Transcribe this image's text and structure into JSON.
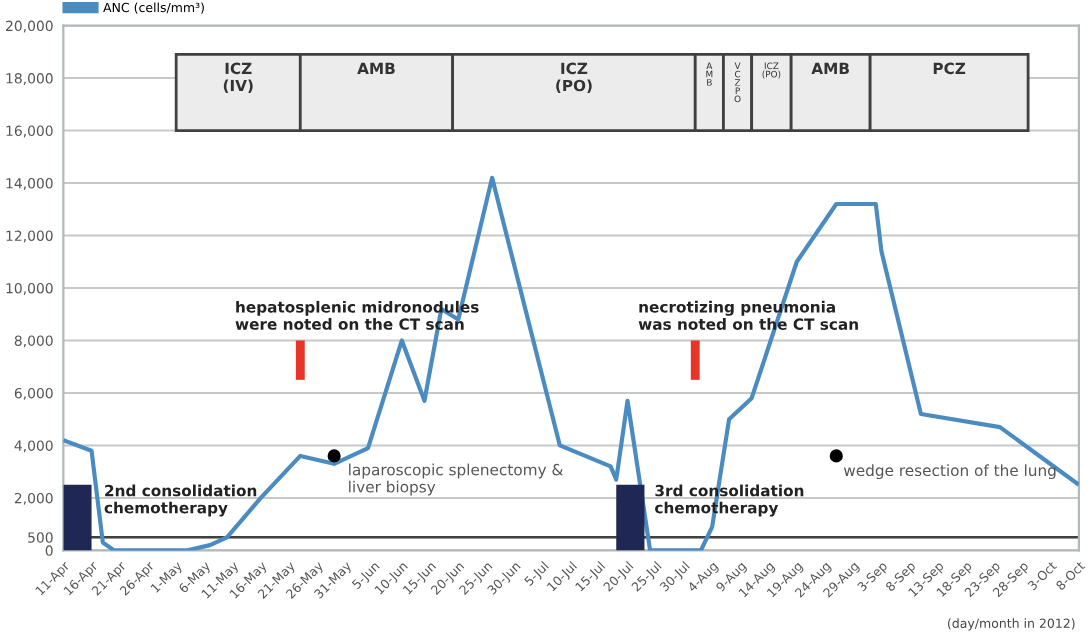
{
  "chart_data": {
    "type": "line",
    "legend": "top left",
    "grid": "y",
    "line_style": "solid",
    "xlim": [
      "2012-04-11",
      "2012-10-08"
    ],
    "xticks": [
      {
        "value": "2012-04-11",
        "label": "11-Apr"
      },
      {
        "value": "2012-04-16",
        "label": "16-Apr"
      },
      {
        "value": "2012-04-21",
        "label": "21-Apr"
      },
      {
        "value": "2012-04-26",
        "label": "26-Apr"
      },
      {
        "value": "2012-05-01",
        "label": "1-May"
      },
      {
        "value": "2012-05-06",
        "label": "6-May"
      },
      {
        "value": "2012-05-11",
        "label": "11-May"
      },
      {
        "value": "2012-05-16",
        "label": "16-May"
      },
      {
        "value": "2012-05-21",
        "label": "21-May"
      },
      {
        "value": "2012-05-26",
        "label": "26-May"
      },
      {
        "value": "2012-05-31",
        "label": "31-May"
      },
      {
        "value": "2012-06-05",
        "label": "5-Jun"
      },
      {
        "value": "2012-06-10",
        "label": "10-Jun"
      },
      {
        "value": "2012-06-15",
        "label": "15-Jun"
      },
      {
        "value": "2012-06-20",
        "label": "20-Jun"
      },
      {
        "value": "2012-06-25",
        "label": "25-Jun"
      },
      {
        "value": "2012-06-30",
        "label": "30-Jun"
      },
      {
        "value": "2012-07-05",
        "label": "5-Jul"
      },
      {
        "value": "2012-07-10",
        "label": "10-Jul"
      },
      {
        "value": "2012-07-15",
        "label": "15-Jul"
      },
      {
        "value": "2012-07-20",
        "label": "20-Jul"
      },
      {
        "value": "2012-07-25",
        "label": "25-Jul"
      },
      {
        "value": "2012-07-30",
        "label": "30-Jul"
      },
      {
        "value": "2012-08-04",
        "label": "4-Aug"
      },
      {
        "value": "2012-08-09",
        "label": "9-Aug"
      },
      {
        "value": "2012-08-14",
        "label": "14-Aug"
      },
      {
        "value": "2012-08-19",
        "label": "19-Aug"
      },
      {
        "value": "2012-08-24",
        "label": "24-Aug"
      },
      {
        "value": "2012-08-29",
        "label": "29-Aug"
      },
      {
        "value": "2012-09-03",
        "label": "3-Sep"
      },
      {
        "value": "2012-09-08",
        "label": "8-Sep"
      },
      {
        "value": "2012-09-13",
        "label": "13-Sep"
      },
      {
        "value": "2012-09-18",
        "label": "18-Sep"
      },
      {
        "value": "2012-09-23",
        "label": "23-Sep"
      },
      {
        "value": "2012-09-28",
        "label": "28-Sep"
      },
      {
        "value": "2012-10-03",
        "label": "3-Oct"
      },
      {
        "value": "2012-10-08",
        "label": "8-Oct"
      }
    ],
    "ylim": [
      0,
      20000
    ],
    "yticks": [
      {
        "value": 0,
        "label": "0"
      },
      {
        "value": 500,
        "label": "500"
      },
      {
        "value": 2000,
        "label": "2,000"
      },
      {
        "value": 4000,
        "label": "4,000"
      },
      {
        "value": 6000,
        "label": "6,000"
      },
      {
        "value": 8000,
        "label": "8,000"
      },
      {
        "value": 10000,
        "label": "10,000"
      },
      {
        "value": 12000,
        "label": "12,000"
      },
      {
        "value": 14000,
        "label": "14,000"
      },
      {
        "value": 16000,
        "label": "16,000"
      },
      {
        "value": 18000,
        "label": "18,000"
      },
      {
        "value": 20000,
        "label": "20,000"
      }
    ],
    "ref_lines": [
      {
        "axis": "y",
        "value": 500,
        "color": "#404040"
      }
    ],
    "bands": [
      {
        "axis": "x",
        "from": "2012-05-01",
        "to": "2012-05-23",
        "label": "ICZ\n(IV)"
      },
      {
        "axis": "x",
        "from": "2012-05-23",
        "to": "2012-06-19",
        "label": "AMB"
      },
      {
        "axis": "x",
        "from": "2012-06-19",
        "to": "2012-08-01",
        "label": "ICZ\n(PO)"
      },
      {
        "axis": "x",
        "from": "2012-08-01",
        "to": "2012-08-06",
        "label": "A\nM\nB"
      },
      {
        "axis": "x",
        "from": "2012-08-06",
        "to": "2012-08-11",
        "label": "V\nC\nZ\nP\nO"
      },
      {
        "axis": "x",
        "from": "2012-08-11",
        "to": "2012-08-18",
        "label": "ICZ\n(PO)"
      },
      {
        "axis": "x",
        "from": "2012-08-18",
        "to": "2012-09-01",
        "label": "AMB"
      },
      {
        "axis": "x",
        "from": "2012-09-01",
        "to": "2012-09-29",
        "label": "PCZ"
      }
    ],
    "series": [
      {
        "name": "ANC (cells/mm³)",
        "color": "#4a8bc2",
        "x": [
          "2012-04-11",
          "2012-04-16",
          "2012-04-18",
          "2012-04-20",
          "2012-05-03",
          "2012-05-07",
          "2012-05-10",
          "2012-05-16",
          "2012-05-23",
          "2012-05-29",
          "2012-06-04",
          "2012-06-10",
          "2012-06-14",
          "2012-06-17",
          "2012-06-20",
          "2012-06-26",
          "2012-07-08",
          "2012-07-17",
          "2012-07-18",
          "2012-07-20",
          "2012-07-24",
          "2012-08-02",
          "2012-08-04",
          "2012-08-07",
          "2012-08-11",
          "2012-08-19",
          "2012-08-26",
          "2012-09-02",
          "2012-09-03",
          "2012-09-10",
          "2012-09-24",
          "2012-10-08"
        ],
        "values": [
          4200,
          3800,
          300,
          0,
          0,
          200,
          500,
          2000,
          3600,
          3300,
          3900,
          8000,
          5700,
          9200,
          8800,
          14200,
          4000,
          3200,
          2700,
          5700,
          0,
          0,
          900,
          5000,
          5800,
          11000,
          13200,
          13200,
          11400,
          5200,
          4700,
          2500
        ]
      },
      {
        "type": "area",
        "color": "#1f2855",
        "x": [
          "2012-04-11",
          "2012-04-16"
        ],
        "values": [
          2500,
          2500
        ]
      },
      {
        "type": "area",
        "color": "#1f2855",
        "x": [
          "2012-07-18",
          "2012-07-23"
        ],
        "values": [
          2500,
          2500
        ]
      },
      {
        "type": "line",
        "color": "#e8352a",
        "x": [
          "2012-05-23",
          "2012-05-23"
        ],
        "values": [
          6500,
          8000
        ]
      },
      {
        "type": "line",
        "color": "#e8352a",
        "x": [
          "2012-08-01",
          "2012-08-01"
        ],
        "values": [
          6500,
          8000
        ]
      },
      {
        "type": "scatter",
        "color": "#000000",
        "x": [
          "2012-05-29",
          "2012-08-26"
        ],
        "values": [
          3600,
          3600
        ]
      }
    ],
    "annotations": [
      "2nd consolidation\nchemotherapy",
      "3rd consolidation\nchemotherapy",
      "hepatosplenic midronodules\nwere noted on the CT scan",
      "necrotizing pneumonia\nwas noted on the CT scan",
      "laparoscopic splenectomy &\nliver biopsy",
      "wedge resection of the lung",
      "(day/month in 2012)"
    ]
  }
}
